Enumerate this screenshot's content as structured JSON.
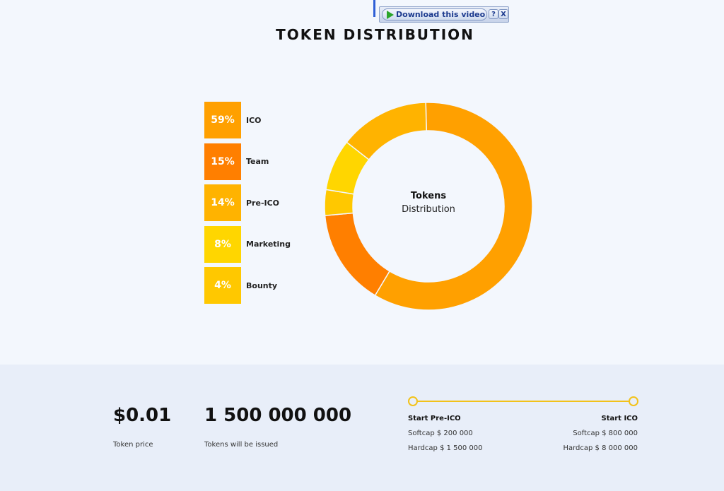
{
  "toolbar": {
    "download_label": "Download this video",
    "help_label": "?",
    "close_label": "X"
  },
  "title": "TOKEN DISTRIBUTION",
  "legend": [
    {
      "percent": "59%",
      "label": "ICO",
      "color": "#ffa000"
    },
    {
      "percent": "15%",
      "label": "Team",
      "color": "#ff7f00"
    },
    {
      "percent": "14%",
      "label": "Pre-ICO",
      "color": "#ffb300"
    },
    {
      "percent": "8%",
      "label": "Marketing",
      "color": "#ffd600"
    },
    {
      "percent": "4%",
      "label": "Bounty",
      "color": "#ffc800"
    }
  ],
  "chart_data": {
    "type": "pie",
    "categories": [
      "ICO",
      "Team",
      "Bounty",
      "Marketing",
      "Pre-ICO"
    ],
    "values": [
      59,
      15,
      4,
      8,
      14
    ],
    "colors": [
      "#ffa000",
      "#ff7f00",
      "#ffc800",
      "#ffd600",
      "#ffb300"
    ],
    "hole": true
  },
  "donut_center": {
    "title": "Tokens",
    "subtitle": "Distribution"
  },
  "stats": {
    "price_value": "$0.01",
    "price_label": "Token price",
    "tokens_value": "1 500 000 000",
    "tokens_label": "Tokens will be issued"
  },
  "timeline": {
    "left": {
      "title": "Start Pre-ICO",
      "softcap": "Softcap $ 200 000",
      "hardcap": "Hardcap $ 1 500 000"
    },
    "right": {
      "title": "Start ICO",
      "softcap": "Softcap $ 800 000",
      "hardcap": "Hardcap $ 8 000 000"
    },
    "accent": "#f2c21a"
  }
}
